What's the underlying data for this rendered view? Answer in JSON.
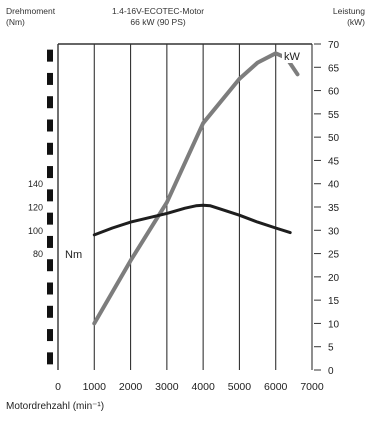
{
  "header": {
    "left_line1": "Drehmoment",
    "left_line2": "(Nm)",
    "mid_line1": "1.4-16V-ECOTEC-Motor",
    "mid_line2": "66 kW (90 PS)",
    "right_line1": "Leistung",
    "right_line2": "(kW)"
  },
  "chart_data": {
    "type": "line",
    "title": "1.4-16V-ECOTEC-Motor 66 kW (90 PS)",
    "xlabel": "Motordrehzahl (min⁻¹)",
    "ylabel_left": "Drehmoment (Nm)",
    "ylabel_right": "Leistung (kW)",
    "xlim": [
      0,
      7000
    ],
    "ylim_right": [
      0,
      70
    ],
    "ylim_left_visible": [
      80,
      140
    ],
    "grid": true,
    "x_ticks": [
      "0",
      "1000",
      "2000",
      "3000",
      "4000",
      "5000",
      "6000",
      "7000"
    ],
    "y_right_ticks": [
      "0",
      "5",
      "10",
      "15",
      "20",
      "25",
      "30",
      "35",
      "40",
      "45",
      "50",
      "55",
      "60",
      "65",
      "70"
    ],
    "y_left_ticks": [
      "80",
      "100",
      "120",
      "140"
    ],
    "series": [
      {
        "name": "kW",
        "axis": "right",
        "x": [
          1000,
          2000,
          3000,
          4000,
          5000,
          5500,
          6000,
          6300,
          6600
        ],
        "y": [
          10,
          23.5,
          36,
          53,
          62.5,
          66,
          68,
          67,
          63.5
        ]
      },
      {
        "name": "Nm",
        "axis": "left",
        "x": [
          1000,
          1500,
          2000,
          3000,
          3500,
          3800,
          4000,
          4200,
          4500,
          5000,
          5500,
          6000,
          6400
        ],
        "y": [
          96,
          102,
          107,
          114.5,
          119,
          121,
          121.5,
          121,
          118,
          113,
          107,
          102,
          98
        ]
      }
    ],
    "colors": {
      "kW": "#7d7d7d",
      "Nm": "#1e1e1e",
      "grid": "#333333"
    }
  }
}
